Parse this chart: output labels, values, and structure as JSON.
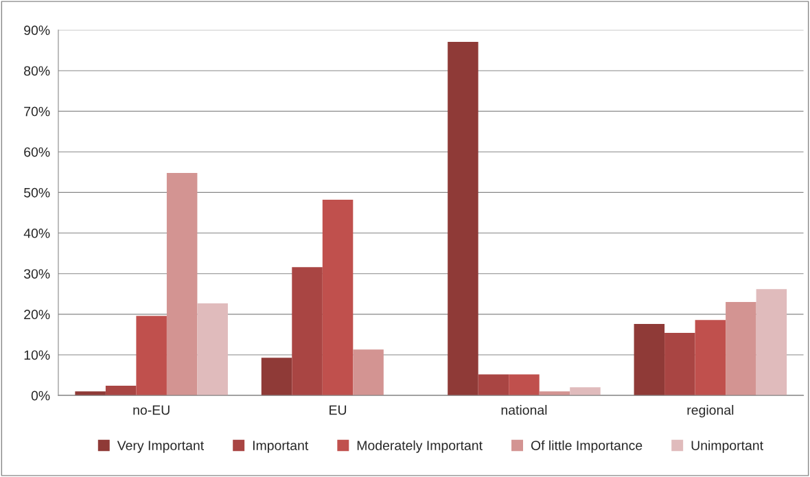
{
  "chart_data": {
    "type": "bar",
    "categories": [
      "no-EU",
      "EU",
      "national",
      "regional"
    ],
    "series": [
      {
        "name": "Very Important",
        "color": "#8f3a37",
        "values": [
          1.0,
          9.3,
          87.1,
          17.6
        ]
      },
      {
        "name": "Important",
        "color": "#a94543",
        "values": [
          2.4,
          31.6,
          5.2,
          15.4
        ]
      },
      {
        "name": "Moderately Important",
        "color": "#c0504d",
        "values": [
          19.6,
          48.2,
          5.2,
          18.6
        ]
      },
      {
        "name": "Of little Importance",
        "color": "#d39492",
        "values": [
          54.8,
          11.3,
          1.0,
          23.0
        ]
      },
      {
        "name": "Unimportant",
        "color": "#e0bbbc",
        "values": [
          22.7,
          null,
          2.0,
          26.2
        ]
      }
    ],
    "ylim": [
      0,
      90
    ],
    "yticks": [
      {
        "value": 0,
        "label": "0%"
      },
      {
        "value": 10,
        "label": "10%"
      },
      {
        "value": 20,
        "label": "20%"
      },
      {
        "value": 30,
        "label": "30%"
      },
      {
        "value": 40,
        "label": "40%"
      },
      {
        "value": 50,
        "label": "50%"
      },
      {
        "value": 60,
        "label": "60%"
      },
      {
        "value": 70,
        "label": "70%"
      },
      {
        "value": 80,
        "label": "80%"
      },
      {
        "value": 90,
        "label": "90%"
      }
    ],
    "grid": "y",
    "legend": "bottom"
  }
}
